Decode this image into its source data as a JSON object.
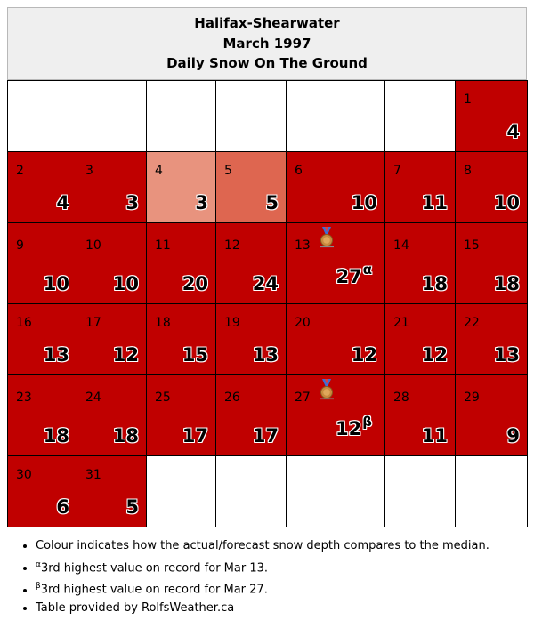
{
  "header": {
    "station": "Halifax-Shearwater",
    "month": "March 1997",
    "subtitle": "Daily Snow On The Ground"
  },
  "colors": {
    "above_median": "#c00000",
    "slightly_above": "#de6650",
    "near_median": "#e8937e",
    "empty": "#ffffff"
  },
  "days": [
    {
      "d": "1",
      "v": "4"
    },
    {
      "d": "2",
      "v": "4"
    },
    {
      "d": "3",
      "v": "3"
    },
    {
      "d": "4",
      "v": "3"
    },
    {
      "d": "5",
      "v": "5"
    },
    {
      "d": "6",
      "v": "10"
    },
    {
      "d": "7",
      "v": "11"
    },
    {
      "d": "8",
      "v": "10"
    },
    {
      "d": "9",
      "v": "10"
    },
    {
      "d": "10",
      "v": "10"
    },
    {
      "d": "11",
      "v": "20"
    },
    {
      "d": "12",
      "v": "24"
    },
    {
      "d": "13",
      "v": "27",
      "sup": "α"
    },
    {
      "d": "14",
      "v": "18"
    },
    {
      "d": "15",
      "v": "18"
    },
    {
      "d": "16",
      "v": "13"
    },
    {
      "d": "17",
      "v": "12"
    },
    {
      "d": "18",
      "v": "15"
    },
    {
      "d": "19",
      "v": "13"
    },
    {
      "d": "20",
      "v": "12"
    },
    {
      "d": "21",
      "v": "12"
    },
    {
      "d": "22",
      "v": "13"
    },
    {
      "d": "23",
      "v": "18"
    },
    {
      "d": "24",
      "v": "18"
    },
    {
      "d": "25",
      "v": "17"
    },
    {
      "d": "26",
      "v": "17"
    },
    {
      "d": "27",
      "v": "12",
      "sup": "β"
    },
    {
      "d": "28",
      "v": "11"
    },
    {
      "d": "29",
      "v": "9"
    },
    {
      "d": "30",
      "v": "6"
    },
    {
      "d": "31",
      "v": "5"
    }
  ],
  "notes": {
    "legend": "Colour indicates how the actual/forecast snow depth compares to the median.",
    "alpha_mark": "α",
    "alpha_text": "3rd highest value on record for Mar 13.",
    "beta_mark": "β",
    "beta_text": "3rd highest value on record for Mar 27.",
    "credit": "Table provided by RolfsWeather.ca"
  },
  "icons": {
    "record_marker": "bronze-medal-icon"
  }
}
